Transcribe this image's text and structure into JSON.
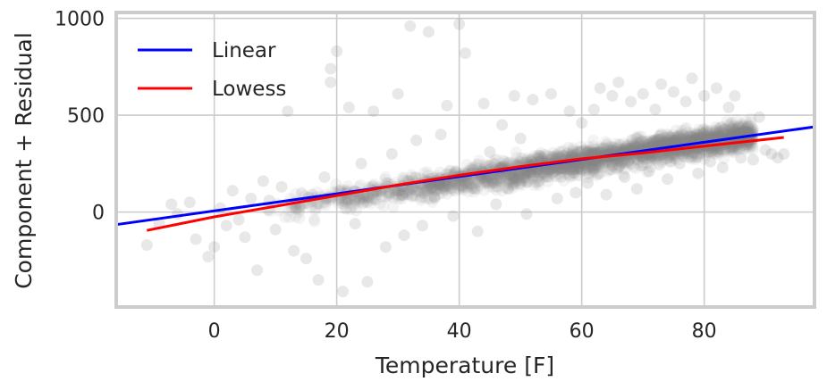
{
  "chart_data": {
    "type": "scatter",
    "title": "",
    "xlabel": "Temperature [F]",
    "ylabel": "Component + Residual",
    "xlim": [
      -16,
      98
    ],
    "ylim": [
      -490,
      1030
    ],
    "grid": true,
    "legend_position": "top-left",
    "x_ticks": [
      {
        "value": 0,
        "label": "0"
      },
      {
        "value": 20,
        "label": "20"
      },
      {
        "value": 40,
        "label": "40"
      },
      {
        "value": 60,
        "label": "60"
      },
      {
        "value": 80,
        "label": "80"
      }
    ],
    "y_ticks": [
      {
        "value": 0,
        "label": "0"
      },
      {
        "value": 500,
        "label": "500"
      },
      {
        "value": 1000,
        "label": "1000"
      }
    ],
    "scatter_color": "#808080",
    "series": [
      {
        "name": "Linear",
        "type": "line",
        "color": "#0000ff",
        "x": [
          -16,
          98
        ],
        "y": [
          -65,
          440
        ]
      },
      {
        "name": "Lowess",
        "type": "line",
        "color": "#ff0000",
        "x": [
          -11,
          0,
          10,
          20,
          30,
          40,
          50,
          60,
          70,
          80,
          93
        ],
        "y": [
          -95,
          -25,
          30,
          85,
          140,
          190,
          235,
          275,
          305,
          340,
          385
        ]
      }
    ],
    "scatter_points": [
      [
        -11,
        -170
      ],
      [
        -9,
        -60
      ],
      [
        -7,
        40
      ],
      [
        -6,
        -10
      ],
      [
        -4,
        50
      ],
      [
        -3,
        -140
      ],
      [
        -1,
        -230
      ],
      [
        0,
        -180
      ],
      [
        1,
        20
      ],
      [
        2,
        -70
      ],
      [
        3,
        110
      ],
      [
        4,
        -40
      ],
      [
        5,
        -130
      ],
      [
        6,
        70
      ],
      [
        7,
        -300
      ],
      [
        8,
        160
      ],
      [
        9,
        60
      ],
      [
        10,
        -90
      ],
      [
        11,
        130
      ],
      [
        12,
        520
      ],
      [
        13,
        -200
      ],
      [
        14,
        30
      ],
      [
        15,
        -240
      ],
      [
        16,
        90
      ],
      [
        17,
        -350
      ],
      [
        18,
        180
      ],
      [
        19,
        740
      ],
      [
        19,
        670
      ],
      [
        20,
        830
      ],
      [
        21,
        -410
      ],
      [
        22,
        540
      ],
      [
        23,
        -60
      ],
      [
        24,
        250
      ],
      [
        25,
        -360
      ],
      [
        26,
        520
      ],
      [
        27,
        110
      ],
      [
        28,
        -180
      ],
      [
        29,
        300
      ],
      [
        30,
        610
      ],
      [
        31,
        -120
      ],
      [
        32,
        960
      ],
      [
        33,
        370
      ],
      [
        34,
        -70
      ],
      [
        35,
        930
      ],
      [
        36,
        80
      ],
      [
        37,
        400
      ],
      [
        38,
        550
      ],
      [
        39,
        -20
      ],
      [
        40,
        970
      ],
      [
        41,
        820
      ],
      [
        42,
        200
      ],
      [
        43,
        -100
      ],
      [
        44,
        560
      ],
      [
        45,
        310
      ],
      [
        46,
        40
      ],
      [
        47,
        450
      ],
      [
        48,
        120
      ],
      [
        49,
        600
      ],
      [
        50,
        380
      ],
      [
        51,
        -10
      ],
      [
        52,
        580
      ],
      [
        53,
        160
      ],
      [
        55,
        610
      ],
      [
        56,
        70
      ],
      [
        58,
        520
      ],
      [
        59,
        100
      ],
      [
        60,
        460
      ],
      [
        61,
        150
      ],
      [
        62,
        530
      ],
      [
        63,
        640
      ],
      [
        64,
        90
      ],
      [
        65,
        600
      ],
      [
        66,
        670
      ],
      [
        67,
        180
      ],
      [
        68,
        570
      ],
      [
        69,
        120
      ],
      [
        70,
        610
      ],
      [
        71,
        210
      ],
      [
        72,
        530
      ],
      [
        73,
        660
      ],
      [
        74,
        170
      ],
      [
        75,
        620
      ],
      [
        76,
        250
      ],
      [
        77,
        570
      ],
      [
        78,
        690
      ],
      [
        79,
        200
      ],
      [
        80,
        600
      ],
      [
        81,
        260
      ],
      [
        82,
        640
      ],
      [
        83,
        230
      ],
      [
        84,
        540
      ],
      [
        85,
        600
      ],
      [
        86,
        280
      ],
      [
        87,
        350
      ],
      [
        88,
        270
      ],
      [
        89,
        490
      ],
      [
        90,
        320
      ],
      [
        91,
        300
      ],
      [
        92,
        280
      ],
      [
        93,
        300
      ]
    ]
  }
}
